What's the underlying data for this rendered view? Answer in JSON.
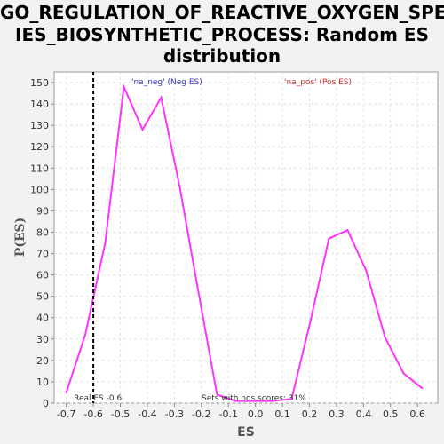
{
  "chart_data": {
    "type": "line",
    "title_lines": [
      "GO_REGULATION_OF_REACTIVE_OXYGEN_SPEC",
      "IES_BIOSYNTHETIC_PROCESS: Random ES",
      "distribution"
    ],
    "xlabel": "ES",
    "ylabel": "P(ES)",
    "xlim": [
      -0.745,
      0.675
    ],
    "ylim": [
      0,
      155
    ],
    "x_ticks": [
      "-0.7",
      "-0.6",
      "-0.5",
      "-0.4",
      "-0.3",
      "-0.2",
      "-0.1",
      "0.0",
      "0.1",
      "0.2",
      "0.3",
      "0.4",
      "0.5",
      "0.6"
    ],
    "y_ticks": [
      "0",
      "10",
      "20",
      "30",
      "40",
      "50",
      "60",
      "70",
      "80",
      "90",
      "100",
      "110",
      "120",
      "130",
      "140",
      "150"
    ],
    "grid": true,
    "series": [
      {
        "color": "#ff33ff",
        "points": [
          [
            -0.7,
            5
          ],
          [
            -0.63,
            32
          ],
          [
            -0.556,
            75
          ],
          [
            -0.487,
            148
          ],
          [
            -0.418,
            128
          ],
          [
            -0.349,
            143
          ],
          [
            -0.28,
            101
          ],
          [
            -0.211,
            52
          ],
          [
            -0.142,
            4
          ],
          [
            -0.073,
            1
          ],
          [
            -0.004,
            1
          ],
          [
            0.065,
            1
          ],
          [
            0.134,
            2
          ],
          [
            0.203,
            38
          ],
          [
            0.272,
            77
          ],
          [
            0.341,
            81
          ],
          [
            0.41,
            62
          ],
          [
            0.479,
            31
          ],
          [
            0.548,
            14
          ],
          [
            0.617,
            7
          ]
        ]
      }
    ],
    "real_es": {
      "value": -0.6,
      "label": "Real ES -0.6",
      "color": "#000000"
    },
    "annotations": {
      "neg_label": "'na_neg' (Neg ES)",
      "neg_color": "#3333cc",
      "pos_label": "'na_pos' (Pos ES)",
      "pos_color": "#cc3333",
      "pos_scores_label": "Sets with pos scores: 31%"
    }
  }
}
